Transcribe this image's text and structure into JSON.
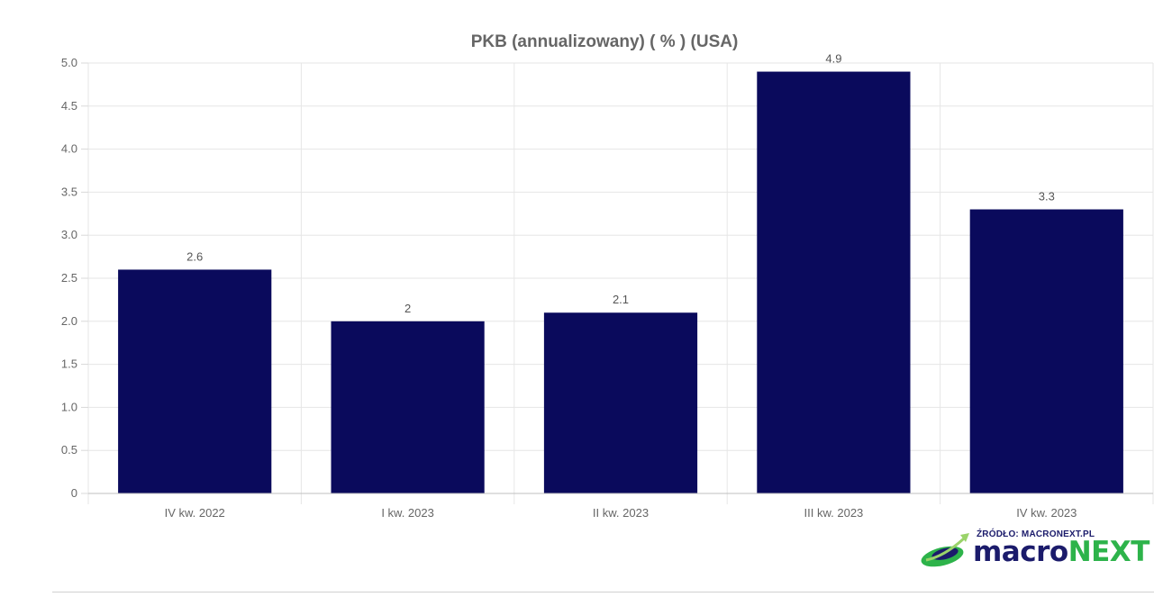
{
  "chart_data": {
    "type": "bar",
    "title": "PKB (annualizowany) ( % ) (USA)",
    "categories": [
      "IV kw. 2022",
      "I kw. 2023",
      "II kw. 2023",
      "III kw. 2023",
      "IV kw. 2023"
    ],
    "values": [
      2.6,
      2,
      2.1,
      4.9,
      3.3
    ],
    "data_labels": [
      "2.6",
      "2",
      "2.1",
      "4.9",
      "3.3"
    ],
    "xlabel": "",
    "ylabel": "",
    "ylim": [
      0,
      5
    ],
    "yticks": [
      0,
      0.5,
      1,
      1.5,
      2,
      2.5,
      3,
      3.5,
      4,
      4.5,
      5
    ],
    "ytick_labels": [
      "0",
      "0.5",
      "1.0",
      "1.5",
      "2.0",
      "2.5",
      "3.0",
      "3.5",
      "4.0",
      "4.5",
      "5.0"
    ],
    "bar_color": "#0a0a5c",
    "grid": true,
    "legend": "none"
  },
  "logo": {
    "source_text": "ŹRÓDŁO: MACRONEXT.PL",
    "word_part1": "macro",
    "word_part2": "NEXT",
    "primary_color": "#1b1b6b",
    "accent_color": "#2db34a"
  }
}
